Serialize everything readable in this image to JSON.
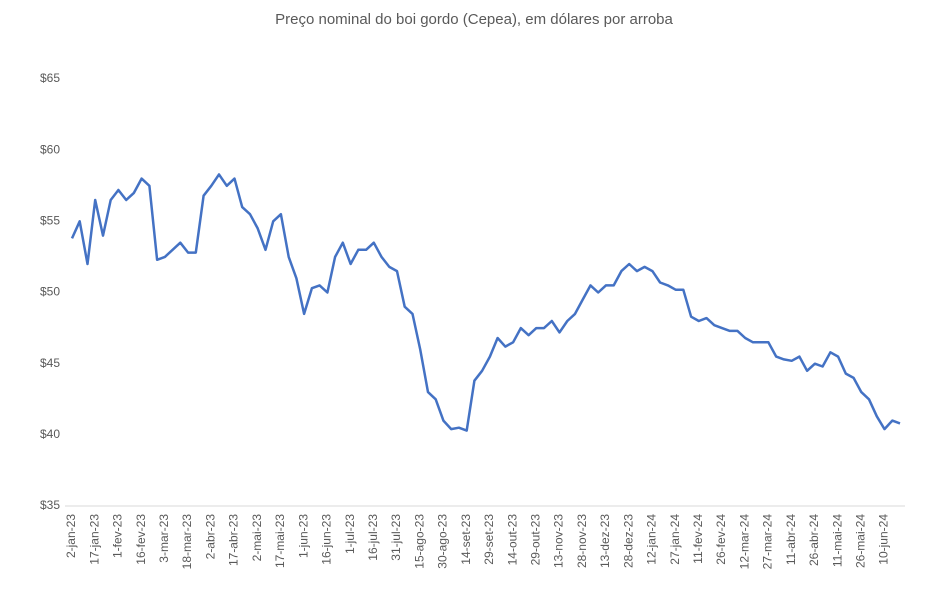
{
  "chart_data": {
    "type": "line",
    "title": "Preço nominal do boi gordo (Cepea), em dólares por arroba",
    "categories": [
      "2-jan-23",
      null,
      null,
      "17-jan-23",
      null,
      null,
      "1-fev-23",
      null,
      null,
      "16-fev-23",
      null,
      null,
      "3-mar-23",
      null,
      null,
      "18-mar-23",
      null,
      null,
      "2-abr-23",
      null,
      null,
      "17-abr-23",
      null,
      null,
      "2-mai-23",
      null,
      null,
      "17-mai-23",
      null,
      null,
      "1-jun-23",
      null,
      null,
      "16-jun-23",
      null,
      null,
      "1-jul-23",
      null,
      null,
      "16-jul-23",
      null,
      null,
      "31-jul-23",
      null,
      null,
      "15-ago-23",
      null,
      null,
      "30-ago-23",
      null,
      null,
      "14-set-23",
      null,
      null,
      "29-set-23",
      null,
      null,
      "14-out-23",
      null,
      null,
      "29-out-23",
      null,
      null,
      "13-nov-23",
      null,
      null,
      "28-nov-23",
      null,
      null,
      "13-dez-23",
      null,
      null,
      "28-dez-23",
      null,
      null,
      "12-jan-24",
      null,
      null,
      "27-jan-24",
      null,
      null,
      "11-fev-24",
      null,
      null,
      "26-fev-24",
      null,
      null,
      "12-mar-24",
      null,
      null,
      "27-mar-24",
      null,
      null,
      "11-abr-24",
      null,
      null,
      "26-abr-24",
      null,
      null,
      "11-mai-24",
      null,
      null,
      "26-mai-24",
      null,
      null,
      "10-jun-24",
      null,
      null
    ],
    "series": [
      {
        "name": "Preço",
        "color": "#4472c4",
        "values": [
          53.8,
          55,
          52,
          56.5,
          54,
          56.5,
          57.2,
          56.5,
          57,
          58,
          57.5,
          52.3,
          52.5,
          53,
          53.5,
          52.8,
          52.8,
          56.8,
          57.5,
          58.3,
          57.5,
          58,
          56,
          55.5,
          54.5,
          53,
          55,
          55.5,
          52.5,
          51,
          48.5,
          50.3,
          50.5,
          50,
          52.5,
          53.5,
          52,
          53,
          53,
          53.5,
          52.5,
          51.8,
          51.5,
          49,
          48.5,
          46,
          43,
          42.5,
          41,
          40.4,
          40.5,
          40.3,
          43.8,
          44.5,
          45.5,
          46.8,
          46.2,
          46.5,
          47.5,
          47,
          47.5,
          47.5,
          48,
          47.2,
          48,
          48.5,
          49.5,
          50.5,
          50,
          50.5,
          50.5,
          51.5,
          52,
          51.5,
          51.8,
          51.5,
          50.7,
          50.5,
          50.2,
          50.2,
          48.3,
          48,
          48.2,
          47.7,
          47.5,
          47.3,
          47.3,
          46.8,
          46.5,
          46.5,
          46.5,
          45.5,
          45.3,
          45.2,
          45.5,
          44.5,
          45,
          44.8,
          45.8,
          45.5,
          44.3,
          44,
          43,
          42.5,
          41.3,
          40.4,
          41,
          40.8
        ]
      }
    ],
    "ylim": [
      35,
      65
    ],
    "yticks": [
      {
        "value": 35,
        "label": "$35"
      },
      {
        "value": 40,
        "label": "$40"
      },
      {
        "value": 45,
        "label": "$45"
      },
      {
        "value": 50,
        "label": "$50"
      },
      {
        "value": 55,
        "label": "$55"
      },
      {
        "value": 60,
        "label": "$60"
      },
      {
        "value": 65,
        "label": "$65"
      }
    ],
    "grid": false
  }
}
